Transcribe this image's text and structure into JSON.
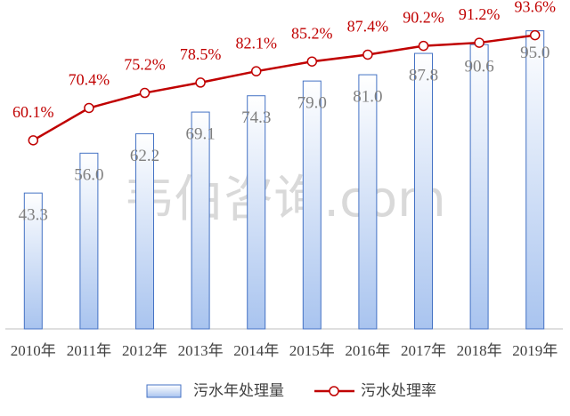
{
  "chart_data": {
    "type": "bar",
    "watermark": "韦伯咨询.com",
    "categories": [
      "2010年",
      "2011年",
      "2012年",
      "2013年",
      "2014年",
      "2015年",
      "2016年",
      "2017年",
      "2018年",
      "2019年"
    ],
    "series": [
      {
        "name": "污水年处理量",
        "type": "bar",
        "color": "#4472c4",
        "values": [
          43.3,
          56.0,
          62.2,
          69.1,
          74.3,
          79.0,
          81.0,
          87.8,
          90.6,
          95.0
        ],
        "value_labels": [
          "43.3",
          "56.0",
          "62.2",
          "69.1",
          "74.3",
          "79.0",
          "81.0",
          "87.8",
          "90.6",
          "95.0"
        ]
      },
      {
        "name": "污水处理率",
        "type": "line",
        "axis": "y2",
        "color": "#c00000",
        "values": [
          60.1,
          70.4,
          75.2,
          78.5,
          82.1,
          85.2,
          87.4,
          90.2,
          91.2,
          93.6
        ],
        "value_labels": [
          "60.1%",
          "70.4%",
          "75.2%",
          "78.5%",
          "82.1%",
          "85.2%",
          "87.4%",
          "90.2%",
          "91.2%",
          "93.6%"
        ]
      }
    ],
    "ylim": [
      0,
      100
    ],
    "y2lim": [
      0,
      100
    ],
    "legend": "bottom"
  }
}
